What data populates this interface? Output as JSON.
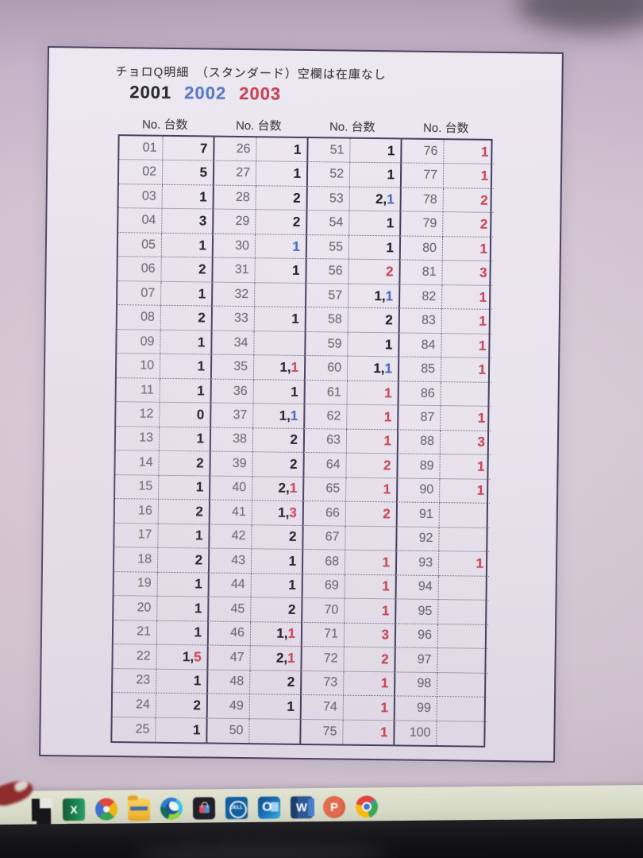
{
  "page": {
    "title": "チョロQ明細　（スタンダード）空欄は在庫なし",
    "years": [
      {
        "text": "2001",
        "color": "#2b2b33"
      },
      {
        "text": "2002",
        "color": "#5b7bc8"
      },
      {
        "text": "2003",
        "color": "#cf4052"
      }
    ],
    "column_headers": [
      "No. 台数",
      "No. 台数",
      "No. 台数",
      "No. 台数"
    ]
  },
  "colors": {
    "k": "#23232c",
    "b": "#4a6cc4",
    "r": "#d24557"
  },
  "table": {
    "groups": [
      {
        "entries": [
          {
            "no": "01",
            "q": [
              [
                "7",
                "k"
              ]
            ]
          },
          {
            "no": "02",
            "q": [
              [
                "5",
                "k"
              ]
            ]
          },
          {
            "no": "03",
            "q": [
              [
                "1",
                "k"
              ]
            ]
          },
          {
            "no": "04",
            "q": [
              [
                "3",
                "k"
              ]
            ]
          },
          {
            "no": "05",
            "q": [
              [
                "1",
                "k"
              ]
            ]
          },
          {
            "no": "06",
            "q": [
              [
                "2",
                "k"
              ]
            ]
          },
          {
            "no": "07",
            "q": [
              [
                "1",
                "k"
              ]
            ]
          },
          {
            "no": "08",
            "q": [
              [
                "2",
                "k"
              ]
            ]
          },
          {
            "no": "09",
            "q": [
              [
                "1",
                "k"
              ]
            ]
          },
          {
            "no": "10",
            "q": [
              [
                "1",
                "k"
              ]
            ]
          },
          {
            "no": "11",
            "q": [
              [
                "1",
                "k"
              ]
            ]
          },
          {
            "no": "12",
            "q": [
              [
                "0",
                "k"
              ]
            ]
          },
          {
            "no": "13",
            "q": [
              [
                "1",
                "k"
              ]
            ]
          },
          {
            "no": "14",
            "q": [
              [
                "2",
                "k"
              ]
            ]
          },
          {
            "no": "15",
            "q": [
              [
                "1",
                "k"
              ]
            ]
          },
          {
            "no": "16",
            "q": [
              [
                "2",
                "k"
              ]
            ]
          },
          {
            "no": "17",
            "q": [
              [
                "1",
                "k"
              ]
            ]
          },
          {
            "no": "18",
            "q": [
              [
                "2",
                "k"
              ]
            ]
          },
          {
            "no": "19",
            "q": [
              [
                "1",
                "k"
              ]
            ]
          },
          {
            "no": "20",
            "q": [
              [
                "1",
                "k"
              ]
            ]
          },
          {
            "no": "21",
            "q": [
              [
                "1",
                "k"
              ]
            ]
          },
          {
            "no": "22",
            "q": [
              [
                "1",
                "k"
              ],
              [
                "5",
                "r"
              ]
            ]
          },
          {
            "no": "23",
            "q": [
              [
                "1",
                "k"
              ]
            ]
          },
          {
            "no": "24",
            "q": [
              [
                "2",
                "k"
              ]
            ]
          },
          {
            "no": "25",
            "q": [
              [
                "1",
                "k"
              ]
            ]
          }
        ]
      },
      {
        "entries": [
          {
            "no": "26",
            "q": [
              [
                "1",
                "k"
              ]
            ]
          },
          {
            "no": "27",
            "q": [
              [
                "1",
                "k"
              ]
            ]
          },
          {
            "no": "28",
            "q": [
              [
                "2",
                "k"
              ]
            ]
          },
          {
            "no": "29",
            "q": [
              [
                "2",
                "k"
              ]
            ]
          },
          {
            "no": "30",
            "q": [
              [
                "1",
                "b"
              ]
            ]
          },
          {
            "no": "31",
            "q": [
              [
                "1",
                "k"
              ]
            ]
          },
          {
            "no": "32",
            "q": []
          },
          {
            "no": "33",
            "q": [
              [
                "1",
                "k"
              ]
            ]
          },
          {
            "no": "34",
            "q": []
          },
          {
            "no": "35",
            "q": [
              [
                "1",
                "k"
              ],
              [
                "1",
                "r"
              ]
            ]
          },
          {
            "no": "36",
            "q": [
              [
                "1",
                "k"
              ]
            ]
          },
          {
            "no": "37",
            "q": [
              [
                "1",
                "k"
              ],
              [
                "1",
                "b"
              ]
            ]
          },
          {
            "no": "38",
            "q": [
              [
                "2",
                "k"
              ]
            ]
          },
          {
            "no": "39",
            "q": [
              [
                "2",
                "k"
              ]
            ]
          },
          {
            "no": "40",
            "q": [
              [
                "2",
                "k"
              ],
              [
                "1",
                "r"
              ]
            ]
          },
          {
            "no": "41",
            "q": [
              [
                "1",
                "k"
              ],
              [
                "3",
                "r"
              ]
            ]
          },
          {
            "no": "42",
            "q": [
              [
                "2",
                "k"
              ]
            ]
          },
          {
            "no": "43",
            "q": [
              [
                "1",
                "k"
              ]
            ]
          },
          {
            "no": "44",
            "q": [
              [
                "1",
                "k"
              ]
            ]
          },
          {
            "no": "45",
            "q": [
              [
                "2",
                "k"
              ]
            ]
          },
          {
            "no": "46",
            "q": [
              [
                "1",
                "k"
              ],
              [
                "1",
                "r"
              ]
            ]
          },
          {
            "no": "47",
            "q": [
              [
                "2",
                "k"
              ],
              [
                "1",
                "r"
              ]
            ]
          },
          {
            "no": "48",
            "q": [
              [
                "2",
                "k"
              ]
            ]
          },
          {
            "no": "49",
            "q": [
              [
                "1",
                "k"
              ]
            ]
          },
          {
            "no": "50",
            "q": []
          }
        ]
      },
      {
        "entries": [
          {
            "no": "51",
            "q": [
              [
                "1",
                "k"
              ]
            ]
          },
          {
            "no": "52",
            "q": [
              [
                "1",
                "k"
              ]
            ]
          },
          {
            "no": "53",
            "q": [
              [
                "2",
                "k"
              ],
              [
                "1",
                "b"
              ]
            ]
          },
          {
            "no": "54",
            "q": [
              [
                "1",
                "k"
              ]
            ]
          },
          {
            "no": "55",
            "q": [
              [
                "1",
                "k"
              ]
            ]
          },
          {
            "no": "56",
            "q": [
              [
                "2",
                "r"
              ]
            ]
          },
          {
            "no": "57",
            "q": [
              [
                "1",
                "k"
              ],
              [
                "1",
                "b"
              ]
            ]
          },
          {
            "no": "58",
            "q": [
              [
                "2",
                "k"
              ]
            ]
          },
          {
            "no": "59",
            "q": [
              [
                "1",
                "k"
              ]
            ]
          },
          {
            "no": "60",
            "q": [
              [
                "1",
                "k"
              ],
              [
                "1",
                "b"
              ]
            ]
          },
          {
            "no": "61",
            "q": [
              [
                "1",
                "r"
              ]
            ]
          },
          {
            "no": "62",
            "q": [
              [
                "1",
                "r"
              ]
            ]
          },
          {
            "no": "63",
            "q": [
              [
                "1",
                "r"
              ]
            ]
          },
          {
            "no": "64",
            "q": [
              [
                "2",
                "r"
              ]
            ]
          },
          {
            "no": "65",
            "q": [
              [
                "1",
                "r"
              ]
            ]
          },
          {
            "no": "66",
            "q": [
              [
                "2",
                "r"
              ]
            ]
          },
          {
            "no": "67",
            "q": []
          },
          {
            "no": "68",
            "q": [
              [
                "1",
                "r"
              ]
            ]
          },
          {
            "no": "69",
            "q": [
              [
                "1",
                "r"
              ]
            ]
          },
          {
            "no": "70",
            "q": [
              [
                "1",
                "r"
              ]
            ]
          },
          {
            "no": "71",
            "q": [
              [
                "3",
                "r"
              ]
            ]
          },
          {
            "no": "72",
            "q": [
              [
                "2",
                "r"
              ]
            ]
          },
          {
            "no": "73",
            "q": [
              [
                "1",
                "r"
              ]
            ]
          },
          {
            "no": "74",
            "q": [
              [
                "1",
                "r"
              ]
            ]
          },
          {
            "no": "75",
            "q": [
              [
                "1",
                "r"
              ]
            ]
          }
        ]
      },
      {
        "entries": [
          {
            "no": "76",
            "q": [
              [
                "1",
                "r"
              ]
            ]
          },
          {
            "no": "77",
            "q": [
              [
                "1",
                "r"
              ]
            ]
          },
          {
            "no": "78",
            "q": [
              [
                "2",
                "r"
              ]
            ]
          },
          {
            "no": "79",
            "q": [
              [
                "2",
                "r"
              ]
            ]
          },
          {
            "no": "80",
            "q": [
              [
                "1",
                "r"
              ]
            ]
          },
          {
            "no": "81",
            "q": [
              [
                "3",
                "r"
              ]
            ]
          },
          {
            "no": "82",
            "q": [
              [
                "1",
                "r"
              ]
            ]
          },
          {
            "no": "83",
            "q": [
              [
                "1",
                "r"
              ]
            ]
          },
          {
            "no": "84",
            "q": [
              [
                "1",
                "r"
              ]
            ]
          },
          {
            "no": "85",
            "q": [
              [
                "1",
                "r"
              ]
            ]
          },
          {
            "no": "86",
            "q": []
          },
          {
            "no": "87",
            "q": [
              [
                "1",
                "r"
              ]
            ]
          },
          {
            "no": "88",
            "q": [
              [
                "3",
                "r"
              ]
            ]
          },
          {
            "no": "89",
            "q": [
              [
                "1",
                "r"
              ]
            ]
          },
          {
            "no": "90",
            "q": [
              [
                "1",
                "r"
              ]
            ]
          },
          {
            "no": "91",
            "q": []
          },
          {
            "no": "92",
            "q": []
          },
          {
            "no": "93",
            "q": [
              [
                "1",
                "r"
              ]
            ]
          },
          {
            "no": "94",
            "q": []
          },
          {
            "no": "95",
            "q": []
          },
          {
            "no": "96",
            "q": []
          },
          {
            "no": "97",
            "q": []
          },
          {
            "no": "98",
            "q": []
          },
          {
            "no": "99",
            "q": []
          },
          {
            "no": "100",
            "q": []
          }
        ]
      }
    ]
  },
  "taskbar": {
    "icons": [
      {
        "name": "black-l-app-icon",
        "letter": ""
      },
      {
        "name": "excel-icon",
        "letter": "X"
      },
      {
        "name": "photos-icon",
        "letter": ""
      },
      {
        "name": "explorer-icon",
        "letter": ""
      },
      {
        "name": "edge-icon",
        "letter": ""
      },
      {
        "name": "store-icon",
        "letter": ""
      },
      {
        "name": "dell-icon",
        "letter": "DELL"
      },
      {
        "name": "outlook-icon",
        "letter": "O"
      },
      {
        "name": "word-icon",
        "letter": "W"
      },
      {
        "name": "powerpoint-icon",
        "letter": "P"
      },
      {
        "name": "chrome-icon",
        "letter": ""
      }
    ]
  }
}
